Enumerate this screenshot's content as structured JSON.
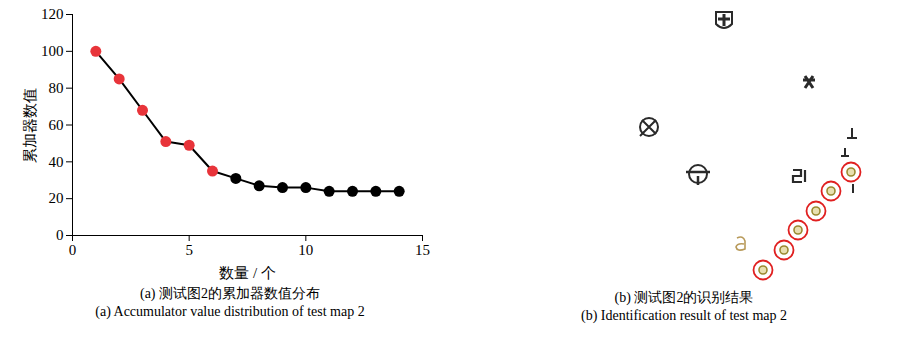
{
  "chart_data": {
    "type": "line",
    "title": "(a) 测试图2的累加器数值分布",
    "subtitle": "(a) Accumulator value distribution of test map 2",
    "x_label": "数量 / 个",
    "y_label": "累加器数值",
    "x": [
      1,
      2,
      3,
      4,
      5,
      6,
      7,
      8,
      9,
      10,
      11,
      12,
      13,
      14
    ],
    "values": [
      100,
      85,
      68,
      51,
      49,
      35,
      31,
      27,
      26,
      26,
      24,
      24,
      24,
      24
    ],
    "colors": [
      "#e8343a",
      "#e8343a",
      "#e8343a",
      "#e8343a",
      "#e8343a",
      "#e8343a",
      "#000000",
      "#000000",
      "#000000",
      "#000000",
      "#000000",
      "#000000",
      "#000000",
      "#000000"
    ],
    "color": "#000000",
    "marker": "circle",
    "xlim": [
      0,
      15
    ],
    "xticks": [
      0,
      5,
      10,
      15
    ],
    "ylim": [
      0,
      120
    ],
    "yticks": [
      0,
      20,
      40,
      60,
      80,
      100,
      120
    ],
    "grid": false
  },
  "figure_b": {
    "title": "(b) 测试图2的识别结果",
    "subtitle": "(b) Identification result of test map 2"
  }
}
